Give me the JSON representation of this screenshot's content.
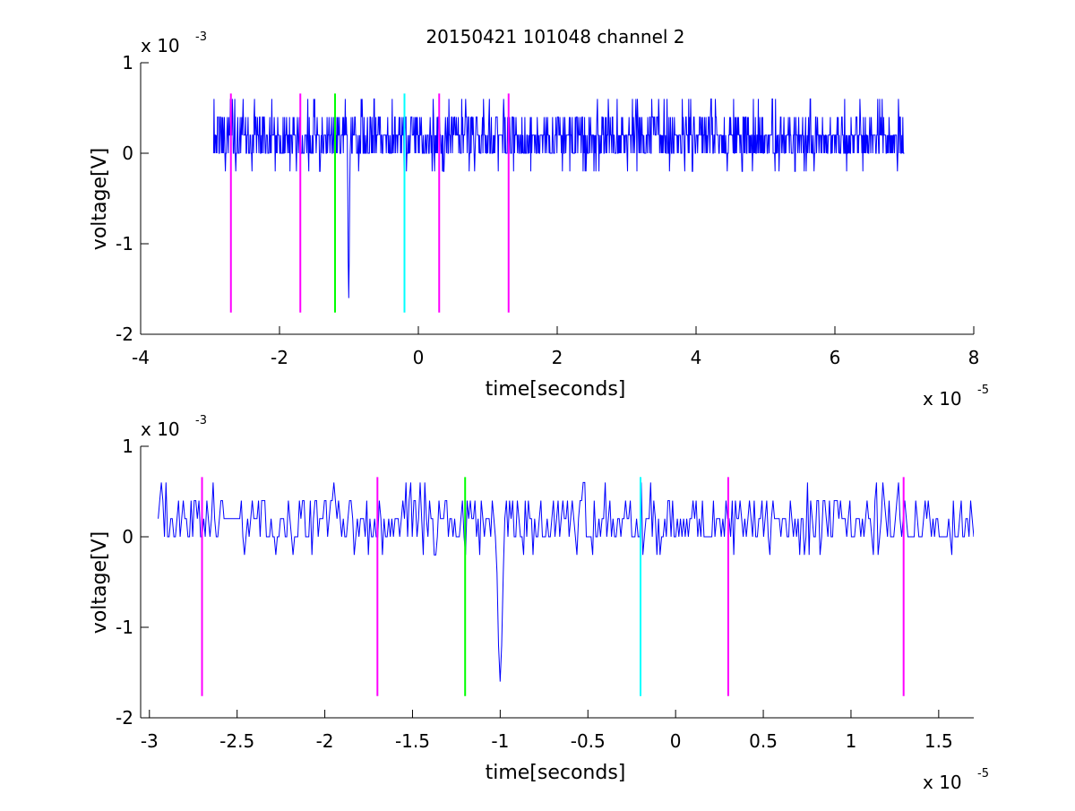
{
  "figure": {
    "title": "20150421 101048 channel 2"
  },
  "chart_data": [
    {
      "type": "line",
      "title": "20150421 101048 channel 2",
      "xlabel": "time[seconds]",
      "ylabel": "voltage[V]",
      "x_exponent_label": "x 10",
      "x_exponent_power": "-5",
      "y_exponent_label": "x 10",
      "y_exponent_power": "-3",
      "xlim": [
        -4e-05,
        8e-05
      ],
      "ylim": [
        -0.002,
        0.001
      ],
      "xticks": [
        -4e-05,
        -2e-05,
        0,
        2e-05,
        4e-05,
        6e-05,
        8e-05
      ],
      "xtick_labels": [
        "-4",
        "-2",
        "0",
        "2",
        "4",
        "6",
        "8"
      ],
      "yticks": [
        -0.002,
        -0.001,
        0,
        0.001
      ],
      "ytick_labels": [
        "-2",
        "-1",
        "0",
        "1"
      ],
      "grid": false,
      "signal": {
        "color": "#0000ff",
        "x_start": -2.95e-05,
        "x_end": 7e-05,
        "levels": [
          0.0004,
          0.0002,
          0.0,
          -0.0002
        ],
        "spike": {
          "x": -1e-05,
          "y": -0.0016
        }
      },
      "markers": [
        {
          "x": -2.7e-05,
          "color": "#ff00ff",
          "y_top": 0.00066,
          "y_bottom": -0.00176
        },
        {
          "x": -1.7e-05,
          "color": "#ff00ff",
          "y_top": 0.00066,
          "y_bottom": -0.00176
        },
        {
          "x": -1.2e-05,
          "color": "#00ff00",
          "y_top": 0.00066,
          "y_bottom": -0.00176
        },
        {
          "x": -2e-06,
          "color": "#00ffff",
          "y_top": 0.00066,
          "y_bottom": -0.00176
        },
        {
          "x": 3e-06,
          "color": "#ff00ff",
          "y_top": 0.00066,
          "y_bottom": -0.00176
        },
        {
          "x": 1.3e-05,
          "color": "#ff00ff",
          "y_top": 0.00066,
          "y_bottom": -0.00176
        }
      ]
    },
    {
      "type": "line",
      "title": "",
      "xlabel": "time[seconds]",
      "ylabel": "voltage[V]",
      "x_exponent_label": "x 10",
      "x_exponent_power": "-5",
      "y_exponent_label": "x 10",
      "y_exponent_power": "-3",
      "xlim": [
        -3.05e-05,
        1.7e-05
      ],
      "ylim": [
        -0.002,
        0.001
      ],
      "xticks": [
        -3e-05,
        -2.5e-05,
        -2e-05,
        -1.5e-05,
        -1e-05,
        -5e-06,
        0,
        5e-06,
        1e-05,
        1.5e-05
      ],
      "xtick_labels": [
        "-3",
        "-2.5",
        "-2",
        "-1.5",
        "-1",
        "-0.5",
        "0",
        "0.5",
        "1",
        "1.5"
      ],
      "yticks": [
        -0.002,
        -0.001,
        0,
        0.001
      ],
      "ytick_labels": [
        "-2",
        "-1",
        "0",
        "1"
      ],
      "grid": false,
      "signal": {
        "color": "#0000ff",
        "x_start": -2.95e-05,
        "x_end": 1.7e-05,
        "levels": [
          0.0004,
          0.0002,
          0.0,
          -0.0002
        ],
        "spike": {
          "x": -1e-05,
          "y": -0.0016
        }
      },
      "markers": [
        {
          "x": -2.7e-05,
          "color": "#ff00ff",
          "y_top": 0.00066,
          "y_bottom": -0.00176
        },
        {
          "x": -1.7e-05,
          "color": "#ff00ff",
          "y_top": 0.00066,
          "y_bottom": -0.00176
        },
        {
          "x": -1.2e-05,
          "color": "#00ff00",
          "y_top": 0.00066,
          "y_bottom": -0.00176
        },
        {
          "x": -2e-06,
          "color": "#00ffff",
          "y_top": 0.00066,
          "y_bottom": -0.00176
        },
        {
          "x": 3e-06,
          "color": "#ff00ff",
          "y_top": 0.00066,
          "y_bottom": -0.00176
        },
        {
          "x": 1.3e-05,
          "color": "#ff00ff",
          "y_top": 0.00066,
          "y_bottom": -0.00176
        }
      ]
    }
  ]
}
